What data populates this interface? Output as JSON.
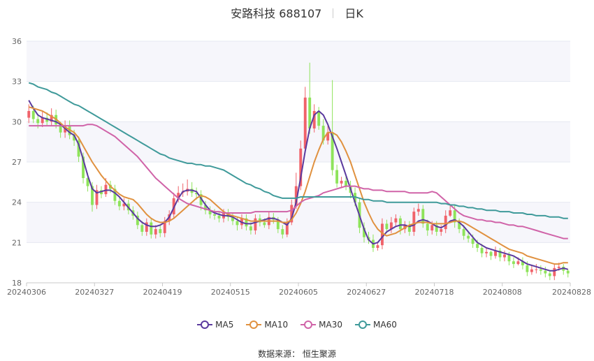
{
  "header": {
    "title": "安路科技 688107",
    "period": "日K"
  },
  "source": {
    "label": "数据来源：",
    "name": "恒生聚源"
  },
  "legend": [
    {
      "name": "MA5",
      "color": "#5b3a9e"
    },
    {
      "name": "MA10",
      "color": "#e0913f"
    },
    {
      "name": "MA30",
      "color": "#d063a8"
    },
    {
      "name": "MA60",
      "color": "#3f9a9a"
    }
  ],
  "colors": {
    "up": "#f0626a",
    "down": "#8ee35a",
    "band": "#f6f6fb",
    "grid": "#e6e8f0"
  },
  "chart_data": {
    "type": "candlestick",
    "x_ticks": [
      "20240306",
      "20240327",
      "20240419",
      "20240515",
      "20240605",
      "20240627",
      "20240718",
      "20240808",
      "20240828"
    ],
    "y_ticks": [
      18,
      21,
      24,
      27,
      30,
      33,
      36
    ],
    "ylim": [
      18,
      36
    ],
    "n_bars": 120,
    "series": [
      {
        "name": "MA5",
        "type": "line",
        "color": "#5b3a9e",
        "values": [
          31.6,
          31.0,
          30.5,
          30.3,
          30.2,
          30.1,
          30.0,
          29.8,
          29.5,
          29.2,
          29.0,
          28.3,
          27.2,
          26.0,
          25.0,
          24.7,
          24.8,
          24.9,
          24.9,
          24.7,
          24.4,
          24.0,
          23.6,
          23.2,
          22.8,
          22.5,
          22.3,
          22.2,
          22.2,
          22.3,
          22.5,
          22.9,
          23.6,
          24.3,
          24.8,
          24.9,
          24.9,
          24.8,
          24.3,
          23.8,
          23.4,
          23.2,
          23.1,
          23.0,
          23.0,
          22.9,
          22.7,
          22.5,
          22.4,
          22.4,
          22.5,
          22.6,
          22.7,
          22.8,
          22.8,
          22.7,
          22.5,
          22.3,
          22.8,
          24.0,
          25.8,
          27.8,
          29.5,
          30.5,
          30.8,
          30.5,
          29.8,
          28.9,
          28.0,
          27.0,
          26.0,
          25.0,
          24.0,
          23.0,
          22.0,
          21.2,
          20.9,
          21.0,
          21.4,
          21.8,
          22.0,
          22.2,
          22.3,
          22.3,
          22.2,
          22.3,
          22.6,
          22.7,
          22.6,
          22.4,
          22.2,
          22.1,
          22.3,
          22.6,
          22.7,
          22.5,
          22.2,
          21.8,
          21.4,
          21.0,
          20.8,
          20.6,
          20.5,
          20.4,
          20.3,
          20.2,
          20.1,
          20.0,
          19.8,
          19.6,
          19.4,
          19.3,
          19.2,
          19.1,
          19.0,
          18.9,
          18.9,
          19.0,
          19.1,
          19.0
        ]
      },
      {
        "name": "MA10",
        "type": "line",
        "color": "#e0913f",
        "values": [
          31.1,
          31.0,
          30.9,
          30.8,
          30.6,
          30.4,
          30.2,
          29.9,
          29.6,
          29.4,
          29.2,
          28.8,
          28.2,
          27.6,
          27.0,
          26.5,
          26.0,
          25.6,
          25.2,
          24.9,
          24.6,
          24.4,
          24.3,
          24.2,
          23.9,
          23.5,
          23.1,
          22.8,
          22.6,
          22.5,
          22.5,
          22.6,
          22.8,
          23.1,
          23.4,
          23.7,
          24.0,
          24.3,
          24.5,
          24.4,
          24.2,
          23.9,
          23.6,
          23.3,
          23.1,
          23.0,
          22.9,
          22.8,
          22.7,
          22.6,
          22.6,
          22.6,
          22.6,
          22.6,
          22.6,
          22.6,
          22.5,
          22.5,
          22.7,
          23.2,
          23.9,
          24.8,
          25.9,
          27.0,
          27.9,
          28.7,
          29.2,
          29.2,
          29.0,
          28.5,
          27.8,
          27.0,
          26.0,
          25.0,
          24.0,
          23.2,
          22.5,
          22.0,
          21.7,
          21.5,
          21.6,
          21.7,
          21.9,
          22.1,
          22.3,
          22.4,
          22.5,
          22.5,
          22.5,
          22.4,
          22.4,
          22.4,
          22.4,
          22.5,
          22.6,
          22.6,
          22.5,
          22.3,
          22.1,
          21.9,
          21.7,
          21.5,
          21.3,
          21.1,
          20.9,
          20.7,
          20.5,
          20.4,
          20.3,
          20.2,
          20.0,
          19.9,
          19.8,
          19.7,
          19.6,
          19.5,
          19.4,
          19.4,
          19.5,
          19.5
        ]
      },
      {
        "name": "MA30",
        "type": "line",
        "color": "#d063a8",
        "values": [
          29.7,
          29.7,
          29.7,
          29.7,
          29.7,
          29.7,
          29.7,
          29.7,
          29.7,
          29.7,
          29.7,
          29.7,
          29.7,
          29.8,
          29.8,
          29.7,
          29.5,
          29.3,
          29.1,
          28.9,
          28.6,
          28.3,
          28.0,
          27.7,
          27.4,
          27.0,
          26.6,
          26.2,
          25.8,
          25.5,
          25.2,
          24.9,
          24.6,
          24.3,
          24.1,
          23.9,
          23.8,
          23.7,
          23.6,
          23.5,
          23.4,
          23.3,
          23.3,
          23.2,
          23.2,
          23.2,
          23.2,
          23.2,
          23.2,
          23.2,
          23.3,
          23.3,
          23.3,
          23.3,
          23.3,
          23.3,
          23.3,
          23.3,
          23.4,
          23.7,
          24.0,
          24.2,
          24.3,
          24.4,
          24.5,
          24.7,
          24.8,
          24.9,
          25.0,
          25.1,
          25.2,
          25.2,
          25.2,
          25.1,
          25.0,
          25.0,
          24.9,
          24.9,
          24.9,
          24.8,
          24.8,
          24.8,
          24.8,
          24.8,
          24.7,
          24.7,
          24.7,
          24.7,
          24.7,
          24.8,
          24.7,
          24.4,
          24.1,
          23.8,
          23.5,
          23.2,
          23.0,
          22.9,
          22.8,
          22.7,
          22.7,
          22.6,
          22.6,
          22.5,
          22.5,
          22.4,
          22.3,
          22.3,
          22.2,
          22.2,
          22.1,
          22.0,
          21.9,
          21.8,
          21.7,
          21.6,
          21.5,
          21.4,
          21.3,
          21.3
        ]
      },
      {
        "name": "MA60",
        "type": "line",
        "color": "#3f9a9a",
        "values": [
          32.9,
          32.8,
          32.6,
          32.5,
          32.4,
          32.2,
          32.1,
          31.9,
          31.7,
          31.5,
          31.3,
          31.2,
          31.0,
          30.8,
          30.6,
          30.4,
          30.2,
          30.0,
          29.8,
          29.6,
          29.4,
          29.2,
          29.0,
          28.8,
          28.6,
          28.4,
          28.2,
          28.0,
          27.8,
          27.6,
          27.5,
          27.3,
          27.2,
          27.1,
          27.0,
          26.9,
          26.9,
          26.8,
          26.8,
          26.7,
          26.7,
          26.6,
          26.5,
          26.4,
          26.2,
          26.0,
          25.8,
          25.6,
          25.4,
          25.3,
          25.1,
          25.0,
          24.8,
          24.7,
          24.5,
          24.4,
          24.3,
          24.3,
          24.3,
          24.3,
          24.4,
          24.4,
          24.4,
          24.4,
          24.4,
          24.4,
          24.4,
          24.4,
          24.4,
          24.4,
          24.4,
          24.4,
          24.4,
          24.3,
          24.2,
          24.2,
          24.1,
          24.1,
          24.1,
          24.0,
          24.0,
          24.0,
          24.0,
          24.0,
          24.0,
          24.0,
          24.0,
          24.0,
          24.0,
          24.0,
          24.0,
          23.9,
          23.9,
          23.8,
          23.8,
          23.7,
          23.7,
          23.6,
          23.6,
          23.5,
          23.5,
          23.4,
          23.4,
          23.4,
          23.3,
          23.3,
          23.3,
          23.2,
          23.2,
          23.2,
          23.1,
          23.1,
          23.0,
          23.0,
          23.0,
          22.9,
          22.9,
          22.9,
          22.8,
          22.8
        ]
      },
      {
        "name": "close",
        "type": "candles",
        "values": [
          30.8,
          30.2,
          29.9,
          30.3,
          30.0,
          30.5,
          29.8,
          29.2,
          29.7,
          29.0,
          28.6,
          27.4,
          25.8,
          25.2,
          23.8,
          24.9,
          24.6,
          25.3,
          25.0,
          24.1,
          23.7,
          23.9,
          23.4,
          23.0,
          22.3,
          21.8,
          22.5,
          21.6,
          22.0,
          21.7,
          22.6,
          23.1,
          24.3,
          24.7,
          24.8,
          25.0,
          24.7,
          24.6,
          23.8,
          23.4,
          23.1,
          23.0,
          22.8,
          23.2,
          22.9,
          22.6,
          22.3,
          22.8,
          22.2,
          21.9,
          22.8,
          22.5,
          22.3,
          22.9,
          22.7,
          22.0,
          21.6,
          22.5,
          23.8,
          25.2,
          28.0,
          31.8,
          29.5,
          30.8,
          29.7,
          28.6,
          29.2,
          26.4,
          25.4,
          25.6,
          25.2,
          24.7,
          24.0,
          22.1,
          21.4,
          21.2,
          20.6,
          20.8,
          22.4,
          22.0,
          22.5,
          22.8,
          22.0,
          22.3,
          21.8,
          23.3,
          23.5,
          22.4,
          21.9,
          22.3,
          21.8,
          22.0,
          23.0,
          23.4,
          22.5,
          22.0,
          21.5,
          21.3,
          20.9,
          20.6,
          20.2,
          20.3,
          20.0,
          20.4,
          19.9,
          20.1,
          19.6,
          19.4,
          19.6,
          19.3,
          18.8,
          19.0,
          19.0,
          18.9,
          18.7,
          18.5,
          19.1,
          19.2,
          18.9,
          18.7
        ]
      },
      {
        "name": "open",
        "type": "candles",
        "values": [
          30.3,
          30.8,
          30.2,
          29.9,
          30.3,
          30.0,
          30.5,
          29.8,
          29.2,
          29.7,
          29.0,
          28.6,
          27.4,
          25.8,
          25.2,
          23.8,
          24.9,
          24.6,
          25.3,
          25.0,
          24.1,
          23.7,
          23.9,
          23.4,
          23.0,
          22.3,
          21.8,
          22.5,
          21.6,
          22.0,
          21.7,
          22.6,
          23.1,
          24.3,
          24.7,
          24.8,
          25.0,
          24.7,
          24.6,
          23.8,
          23.4,
          23.1,
          23.0,
          22.8,
          23.2,
          22.9,
          22.6,
          22.3,
          22.8,
          22.2,
          21.9,
          22.8,
          22.5,
          22.3,
          22.9,
          22.7,
          22.0,
          21.6,
          22.5,
          23.8,
          25.2,
          28.0,
          31.8,
          29.5,
          30.8,
          29.7,
          28.6,
          29.2,
          26.4,
          25.4,
          25.6,
          25.2,
          24.7,
          24.0,
          22.1,
          21.4,
          21.2,
          20.6,
          20.8,
          22.4,
          22.0,
          22.5,
          22.8,
          22.0,
          22.3,
          21.8,
          23.3,
          23.5,
          22.4,
          21.9,
          22.3,
          21.8,
          22.0,
          23.0,
          23.4,
          22.5,
          22.0,
          21.5,
          21.3,
          20.9,
          20.6,
          20.2,
          20.3,
          20.0,
          20.4,
          19.9,
          20.1,
          19.6,
          19.4,
          19.6,
          19.3,
          18.8,
          19.0,
          19.0,
          18.9,
          18.7,
          18.5,
          19.1,
          19.2,
          18.9
        ]
      },
      {
        "name": "high",
        "type": "candles",
        "values": [
          31.3,
          31.2,
          30.6,
          30.8,
          30.7,
          31.0,
          30.9,
          30.0,
          30.1,
          30.1,
          29.4,
          28.9,
          27.7,
          26.2,
          25.5,
          25.3,
          25.2,
          25.8,
          25.6,
          25.3,
          24.4,
          24.3,
          24.2,
          23.7,
          23.3,
          22.6,
          22.8,
          22.8,
          22.3,
          22.3,
          22.9,
          23.4,
          24.7,
          25.2,
          25.4,
          25.7,
          25.5,
          25.1,
          24.9,
          24.1,
          23.7,
          23.5,
          23.3,
          23.5,
          23.5,
          23.2,
          22.9,
          23.1,
          23.1,
          22.5,
          23.1,
          23.1,
          22.8,
          23.3,
          23.2,
          22.9,
          22.3,
          22.8,
          24.2,
          26.2,
          28.6,
          32.6,
          34.4,
          31.3,
          31.1,
          30.2,
          29.7,
          33.1,
          26.8,
          25.9,
          26.0,
          25.6,
          25.1,
          24.3,
          22.5,
          21.8,
          21.6,
          21.0,
          22.8,
          22.7,
          22.9,
          23.1,
          23.0,
          22.6,
          22.6,
          23.6,
          23.9,
          23.8,
          22.7,
          22.6,
          22.6,
          22.3,
          23.4,
          23.8,
          23.8,
          22.8,
          22.3,
          21.8,
          21.6,
          21.2,
          20.9,
          20.6,
          20.4,
          20.7,
          20.6,
          20.4,
          20.3,
          19.9,
          19.9,
          19.9,
          19.6,
          19.3,
          19.4,
          19.3,
          19.2,
          18.9,
          19.4,
          19.5,
          19.4,
          19.0
        ]
      },
      {
        "name": "low",
        "type": "candles",
        "values": [
          29.9,
          29.9,
          29.5,
          29.6,
          29.7,
          29.7,
          29.5,
          28.8,
          28.8,
          28.7,
          28.2,
          27.0,
          25.4,
          24.8,
          23.3,
          23.5,
          24.3,
          24.4,
          24.7,
          23.8,
          23.4,
          23.4,
          23.1,
          22.7,
          22.0,
          21.5,
          21.5,
          21.3,
          21.3,
          21.4,
          21.4,
          22.3,
          22.8,
          24.0,
          24.4,
          24.5,
          24.4,
          24.2,
          23.4,
          23.1,
          22.8,
          22.7,
          22.5,
          22.5,
          22.6,
          22.3,
          21.9,
          22.0,
          21.9,
          21.6,
          21.6,
          22.2,
          22.1,
          22.0,
          22.4,
          21.7,
          21.3,
          21.4,
          22.3,
          23.5,
          24.9,
          27.7,
          29.1,
          29.2,
          29.4,
          28.3,
          28.3,
          26.0,
          25.1,
          25.1,
          24.9,
          24.3,
          23.7,
          21.7,
          21.0,
          20.9,
          20.3,
          20.4,
          20.5,
          21.7,
          21.7,
          22.2,
          21.6,
          21.7,
          21.5,
          21.5,
          23.0,
          22.1,
          21.5,
          21.6,
          21.5,
          21.5,
          21.7,
          22.9,
          22.1,
          21.7,
          21.2,
          21.0,
          20.6,
          20.3,
          19.9,
          19.9,
          19.7,
          19.8,
          19.6,
          19.6,
          19.3,
          19.1,
          19.3,
          19.0,
          18.5,
          18.6,
          18.7,
          18.6,
          18.4,
          18.2,
          18.2,
          18.9,
          18.6,
          18.4
        ]
      }
    ]
  }
}
